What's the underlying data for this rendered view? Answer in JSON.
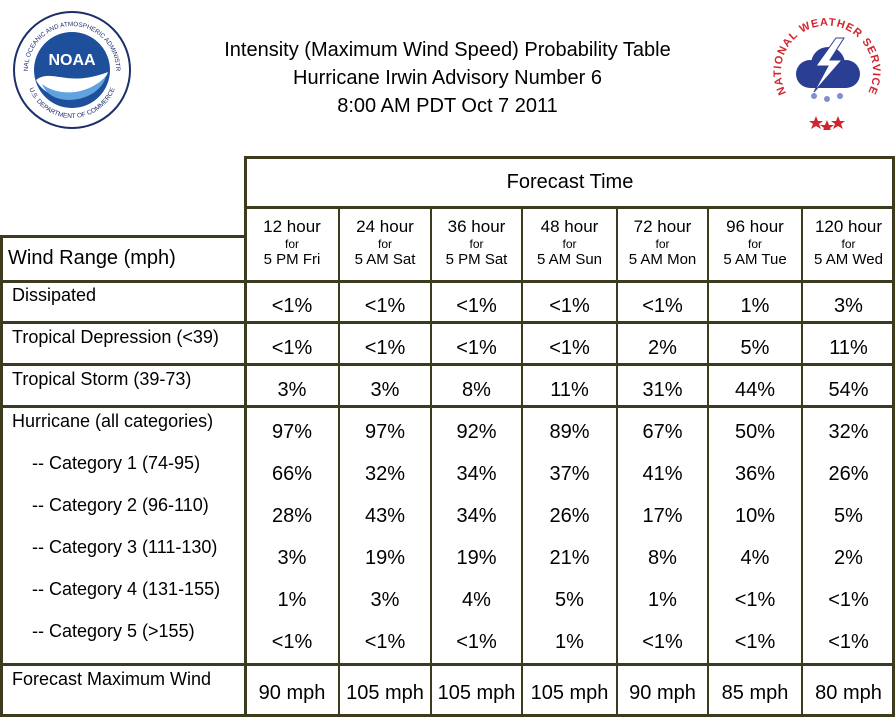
{
  "header": {
    "title_lines": [
      "Intensity (Maximum Wind Speed) Probability Table",
      "Hurricane Irwin Advisory Number 6",
      "8:00 AM PDT Oct 7 2011"
    ],
    "left_logo": {
      "name": "noaa-logo",
      "text": "NOAA",
      "ring_text": "NATIONAL OCEANIC AND ATMOSPHERIC ADMINISTRATION · U.S. DEPARTMENT OF COMMERCE"
    },
    "right_logo": {
      "name": "nws-logo",
      "ring_text": "NATIONAL WEATHER SERVICE"
    }
  },
  "table": {
    "forecast_time_label": "Forecast Time",
    "wind_range_label": "Wind Range (mph)",
    "columns": [
      {
        "hours": "12 hour",
        "for": "for",
        "when": "5 PM Fri"
      },
      {
        "hours": "24 hour",
        "for": "for",
        "when": "5 AM Sat"
      },
      {
        "hours": "36 hour",
        "for": "for",
        "when": "5 PM Sat"
      },
      {
        "hours": "48 hour",
        "for": "for",
        "when": "5 AM Sun"
      },
      {
        "hours": "72 hour",
        "for": "for",
        "when": "5 AM Mon"
      },
      {
        "hours": "96 hour",
        "for": "for",
        "when": "5 AM Tue"
      },
      {
        "hours": "120 hour",
        "for": "for",
        "when": "5 AM Wed"
      }
    ],
    "rows": [
      {
        "label": "Dissipated",
        "values": [
          "<1%",
          "<1%",
          "<1%",
          "<1%",
          "<1%",
          "1%",
          "3%"
        ]
      },
      {
        "label": "Tropical Depression (<39)",
        "values": [
          "<1%",
          "<1%",
          "<1%",
          "<1%",
          "2%",
          "5%",
          "11%"
        ]
      },
      {
        "label": "Tropical Storm (39-73)",
        "values": [
          "3%",
          "3%",
          "8%",
          "11%",
          "31%",
          "44%",
          "54%"
        ]
      },
      {
        "label": "Hurricane (all categories)",
        "values": [
          "97%",
          "97%",
          "92%",
          "89%",
          "67%",
          "50%",
          "32%"
        ]
      },
      {
        "label": "-- Category 1 (74-95)",
        "values": [
          "66%",
          "32%",
          "34%",
          "37%",
          "41%",
          "36%",
          "26%"
        ]
      },
      {
        "label": "-- Category 2 (96-110)",
        "values": [
          "28%",
          "43%",
          "34%",
          "26%",
          "17%",
          "10%",
          "5%"
        ]
      },
      {
        "label": "-- Category 3 (111-130)",
        "values": [
          "3%",
          "19%",
          "19%",
          "21%",
          "8%",
          "4%",
          "2%"
        ]
      },
      {
        "label": "-- Category 4 (131-155)",
        "values": [
          "1%",
          "3%",
          "4%",
          "5%",
          "1%",
          "<1%",
          "<1%"
        ]
      },
      {
        "label": "-- Category 5 (>155)",
        "values": [
          "<1%",
          "<1%",
          "<1%",
          "1%",
          "<1%",
          "<1%",
          "<1%"
        ]
      },
      {
        "label": "Forecast Maximum Wind",
        "values": [
          "90 mph",
          "105 mph",
          "105 mph",
          "105 mph",
          "90 mph",
          "85 mph",
          "80 mph"
        ]
      }
    ]
  },
  "colors": {
    "border": "#3d3a1e",
    "noaa_blue": "#1d4f9b",
    "nws_red": "#d2242d",
    "nws_blue": "#2a3f94"
  }
}
